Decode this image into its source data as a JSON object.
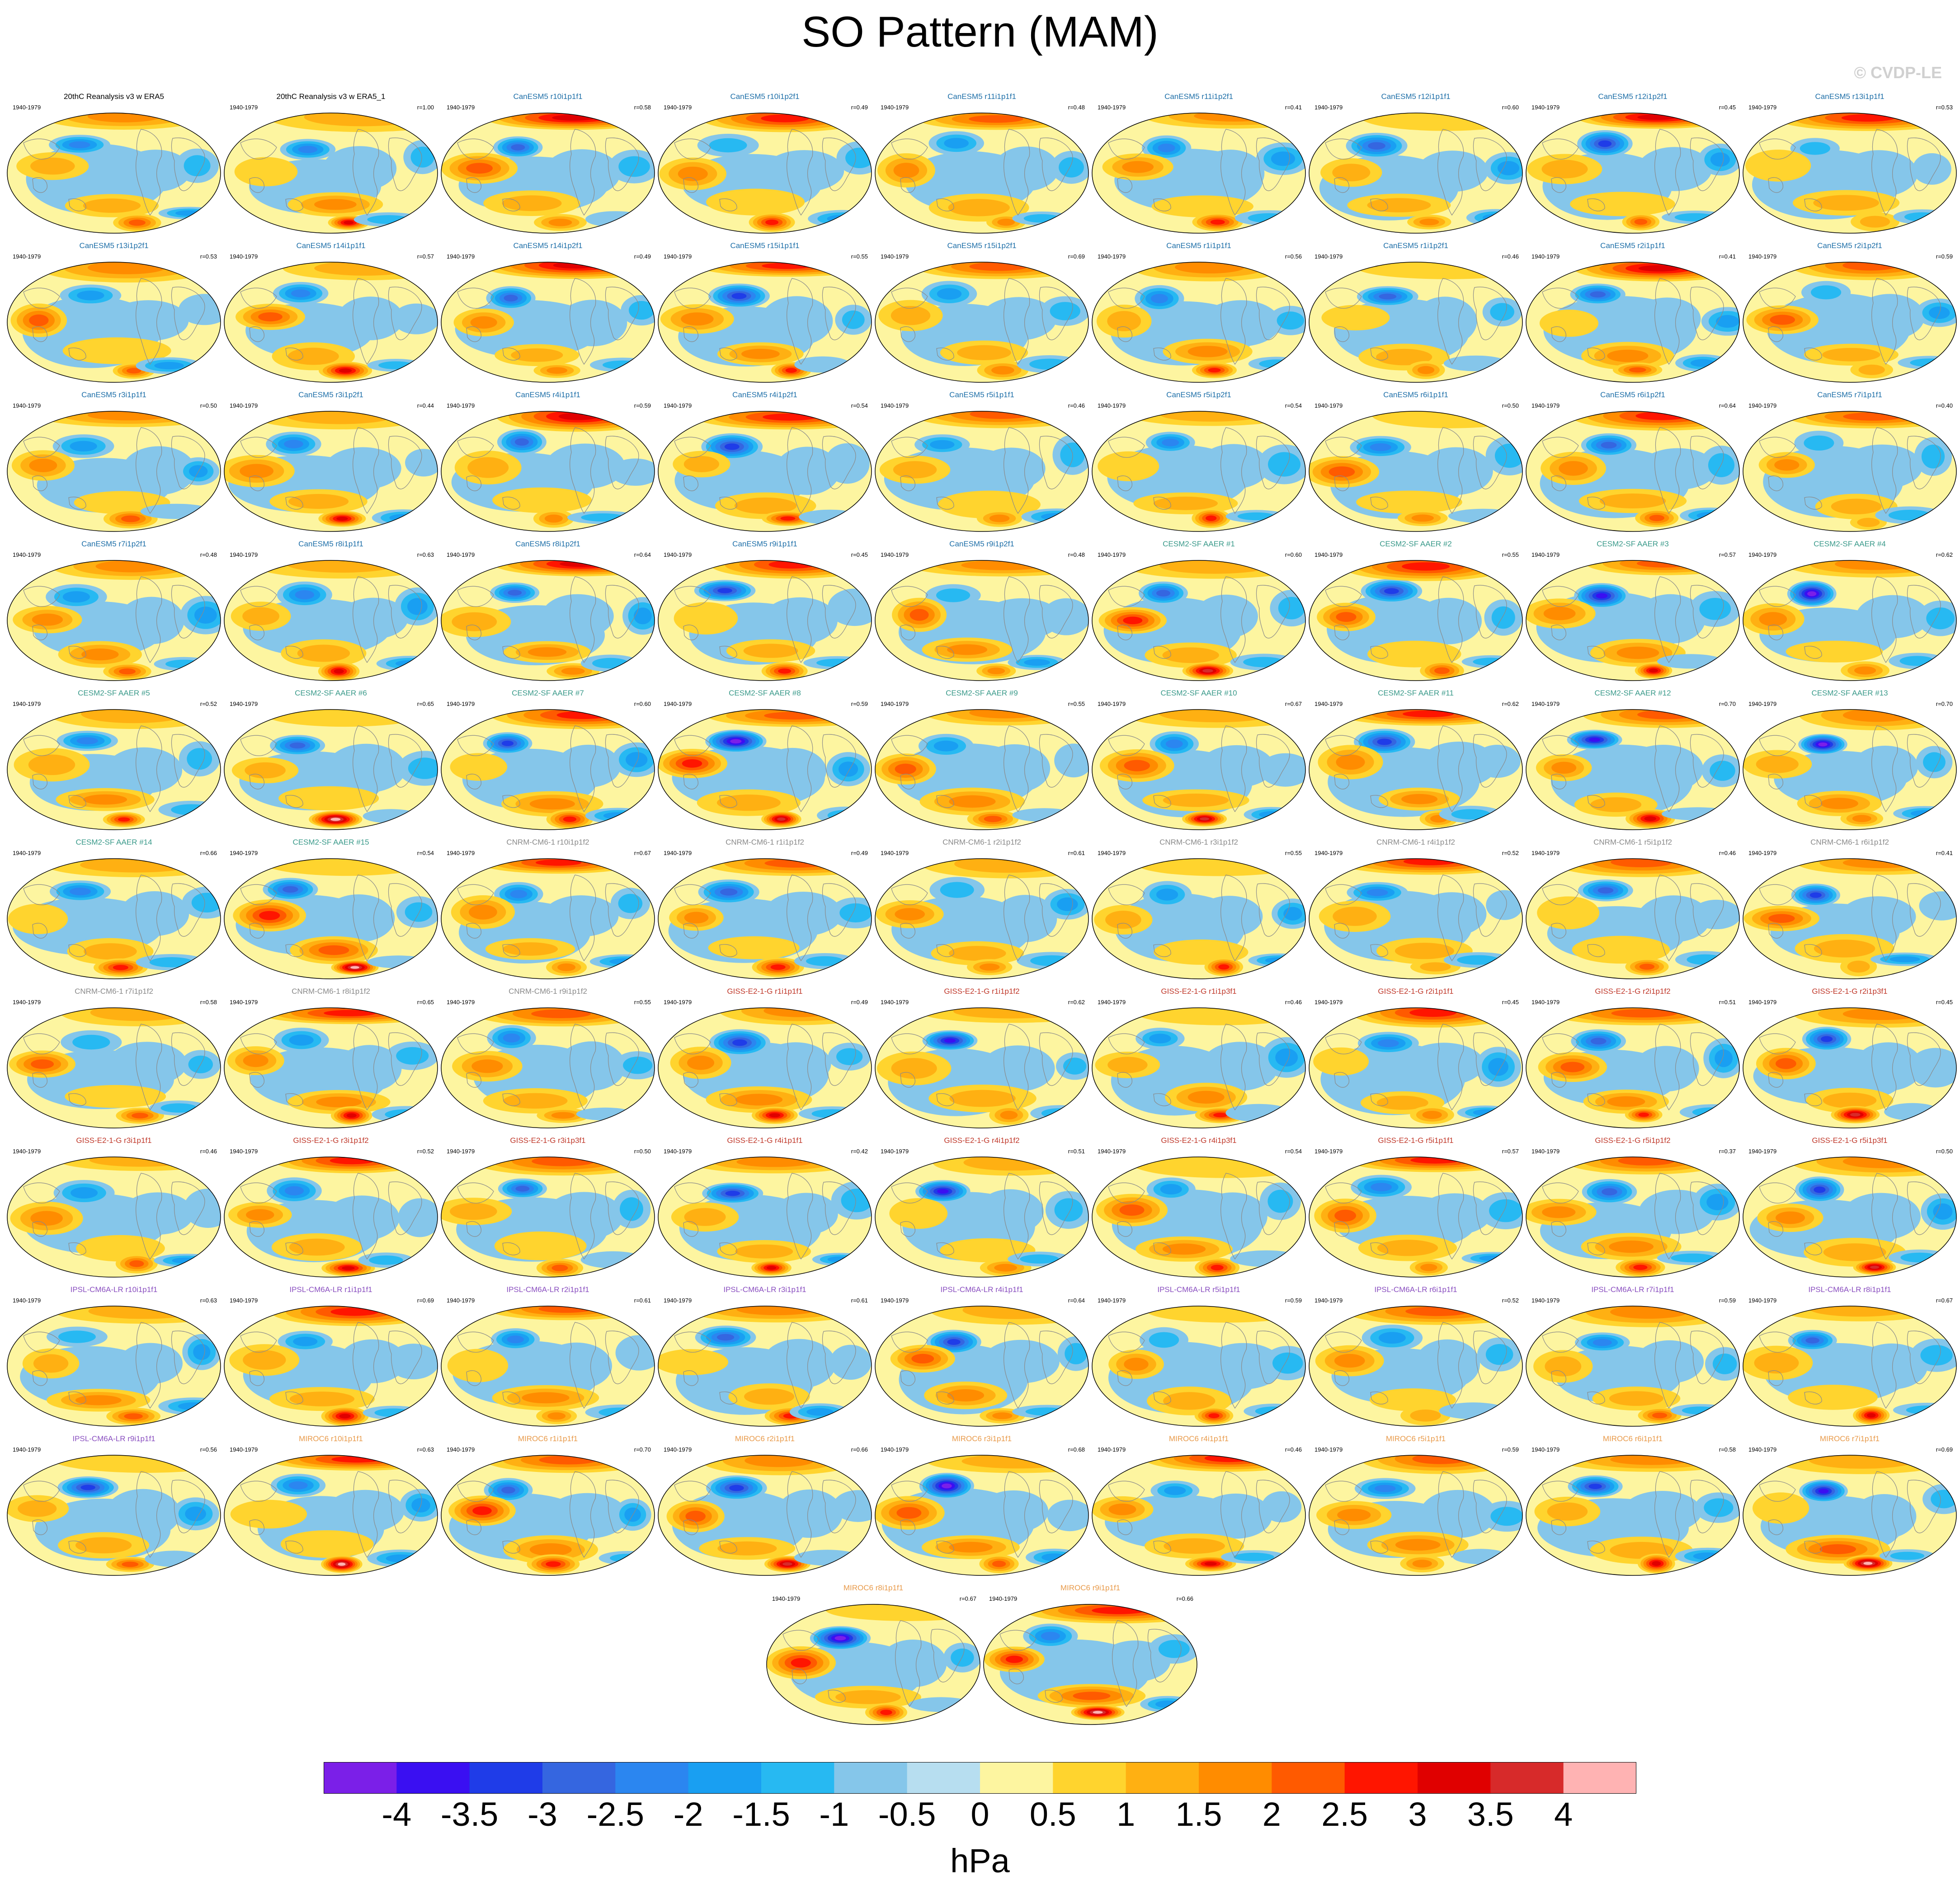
{
  "title": "SO Pattern (MAM)",
  "copyright": "© CVDP-LE",
  "period": "1940-1979",
  "model_colors": {
    "20thC": "#000000",
    "CanESM5": "#1e6fa8",
    "CESM2-SF": "#3a9a8a",
    "CNRM-CM6-1": "#8a8a8a",
    "GISS-E2-1-G": "#c0392b",
    "IPSL-CM6A-LR": "#8a4fc0",
    "MIROC6": "#e89a4a"
  },
  "panels": [
    {
      "title": "20thC Reanalysis v3 w ERA5",
      "r": "",
      "model": "20thC"
    },
    {
      "title": "20thC Reanalysis v3 w ERA5_1",
      "r": "r=1.00",
      "model": "20thC"
    },
    {
      "title": "CanESM5 r10i1p1f1",
      "r": "r=0.58",
      "model": "CanESM5"
    },
    {
      "title": "CanESM5 r10i1p2f1",
      "r": "r=0.49",
      "model": "CanESM5"
    },
    {
      "title": "CanESM5 r11i1p1f1",
      "r": "r=0.48",
      "model": "CanESM5"
    },
    {
      "title": "CanESM5 r11i1p2f1",
      "r": "r=0.41",
      "model": "CanESM5"
    },
    {
      "title": "CanESM5 r12i1p1f1",
      "r": "r=0.60",
      "model": "CanESM5"
    },
    {
      "title": "CanESM5 r12i1p2f1",
      "r": "r=0.45",
      "model": "CanESM5"
    },
    {
      "title": "CanESM5 r13i1p1f1",
      "r": "r=0.53",
      "model": "CanESM5"
    },
    {
      "title": "CanESM5 r13i1p2f1",
      "r": "r=0.53",
      "model": "CanESM5"
    },
    {
      "title": "CanESM5 r14i1p1f1",
      "r": "r=0.57",
      "model": "CanESM5"
    },
    {
      "title": "CanESM5 r14i1p2f1",
      "r": "r=0.49",
      "model": "CanESM5"
    },
    {
      "title": "CanESM5 r15i1p1f1",
      "r": "r=0.55",
      "model": "CanESM5"
    },
    {
      "title": "CanESM5 r15i1p2f1",
      "r": "r=0.69",
      "model": "CanESM5"
    },
    {
      "title": "CanESM5 r1i1p1f1",
      "r": "r=0.56",
      "model": "CanESM5"
    },
    {
      "title": "CanESM5 r1i1p2f1",
      "r": "r=0.46",
      "model": "CanESM5"
    },
    {
      "title": "CanESM5 r2i1p1f1",
      "r": "r=0.41",
      "model": "CanESM5"
    },
    {
      "title": "CanESM5 r2i1p2f1",
      "r": "r=0.59",
      "model": "CanESM5"
    },
    {
      "title": "CanESM5 r3i1p1f1",
      "r": "r=0.50",
      "model": "CanESM5"
    },
    {
      "title": "CanESM5 r3i1p2f1",
      "r": "r=0.44",
      "model": "CanESM5"
    },
    {
      "title": "CanESM5 r4i1p1f1",
      "r": "r=0.59",
      "model": "CanESM5"
    },
    {
      "title": "CanESM5 r4i1p2f1",
      "r": "r=0.54",
      "model": "CanESM5"
    },
    {
      "title": "CanESM5 r5i1p1f1",
      "r": "r=0.46",
      "model": "CanESM5"
    },
    {
      "title": "CanESM5 r5i1p2f1",
      "r": "r=0.54",
      "model": "CanESM5"
    },
    {
      "title": "CanESM5 r6i1p1f1",
      "r": "r=0.50",
      "model": "CanESM5"
    },
    {
      "title": "CanESM5 r6i1p2f1",
      "r": "r=0.64",
      "model": "CanESM5"
    },
    {
      "title": "CanESM5 r7i1p1f1",
      "r": "r=0.40",
      "model": "CanESM5"
    },
    {
      "title": "CanESM5 r7i1p2f1",
      "r": "r=0.48",
      "model": "CanESM5"
    },
    {
      "title": "CanESM5 r8i1p1f1",
      "r": "r=0.63",
      "model": "CanESM5"
    },
    {
      "title": "CanESM5 r8i1p2f1",
      "r": "r=0.64",
      "model": "CanESM5"
    },
    {
      "title": "CanESM5 r9i1p1f1",
      "r": "r=0.45",
      "model": "CanESM5"
    },
    {
      "title": "CanESM5 r9i1p2f1",
      "r": "r=0.48",
      "model": "CanESM5"
    },
    {
      "title": "CESM2-SF AAER #1",
      "r": "r=0.60",
      "model": "CESM2-SF"
    },
    {
      "title": "CESM2-SF AAER #2",
      "r": "r=0.55",
      "model": "CESM2-SF"
    },
    {
      "title": "CESM2-SF AAER #3",
      "r": "r=0.57",
      "model": "CESM2-SF"
    },
    {
      "title": "CESM2-SF AAER #4",
      "r": "r=0.62",
      "model": "CESM2-SF"
    },
    {
      "title": "CESM2-SF AAER #5",
      "r": "r=0.52",
      "model": "CESM2-SF"
    },
    {
      "title": "CESM2-SF AAER #6",
      "r": "r=0.65",
      "model": "CESM2-SF"
    },
    {
      "title": "CESM2-SF AAER #7",
      "r": "r=0.60",
      "model": "CESM2-SF"
    },
    {
      "title": "CESM2-SF AAER #8",
      "r": "r=0.59",
      "model": "CESM2-SF"
    },
    {
      "title": "CESM2-SF AAER #9",
      "r": "r=0.55",
      "model": "CESM2-SF"
    },
    {
      "title": "CESM2-SF AAER #10",
      "r": "r=0.67",
      "model": "CESM2-SF"
    },
    {
      "title": "CESM2-SF AAER #11",
      "r": "r=0.62",
      "model": "CESM2-SF"
    },
    {
      "title": "CESM2-SF AAER #12",
      "r": "r=0.70",
      "model": "CESM2-SF"
    },
    {
      "title": "CESM2-SF AAER #13",
      "r": "r=0.70",
      "model": "CESM2-SF"
    },
    {
      "title": "CESM2-SF AAER #14",
      "r": "r=0.66",
      "model": "CESM2-SF"
    },
    {
      "title": "CESM2-SF AAER #15",
      "r": "r=0.54",
      "model": "CESM2-SF"
    },
    {
      "title": "CNRM-CM6-1 r10i1p1f2",
      "r": "r=0.67",
      "model": "CNRM-CM6-1"
    },
    {
      "title": "CNRM-CM6-1 r1i1p1f2",
      "r": "r=0.49",
      "model": "CNRM-CM6-1"
    },
    {
      "title": "CNRM-CM6-1 r2i1p1f2",
      "r": "r=0.61",
      "model": "CNRM-CM6-1"
    },
    {
      "title": "CNRM-CM6-1 r3i1p1f2",
      "r": "r=0.55",
      "model": "CNRM-CM6-1"
    },
    {
      "title": "CNRM-CM6-1 r4i1p1f2",
      "r": "r=0.52",
      "model": "CNRM-CM6-1"
    },
    {
      "title": "CNRM-CM6-1 r5i1p1f2",
      "r": "r=0.46",
      "model": "CNRM-CM6-1"
    },
    {
      "title": "CNRM-CM6-1 r6i1p1f2",
      "r": "r=0.41",
      "model": "CNRM-CM6-1"
    },
    {
      "title": "CNRM-CM6-1 r7i1p1f2",
      "r": "r=0.58",
      "model": "CNRM-CM6-1"
    },
    {
      "title": "CNRM-CM6-1 r8i1p1f2",
      "r": "r=0.65",
      "model": "CNRM-CM6-1"
    },
    {
      "title": "CNRM-CM6-1 r9i1p1f2",
      "r": "r=0.55",
      "model": "CNRM-CM6-1"
    },
    {
      "title": "GISS-E2-1-G r1i1p1f1",
      "r": "r=0.49",
      "model": "GISS-E2-1-G"
    },
    {
      "title": "GISS-E2-1-G r1i1p1f2",
      "r": "r=0.62",
      "model": "GISS-E2-1-G"
    },
    {
      "title": "GISS-E2-1-G r1i1p3f1",
      "r": "r=0.46",
      "model": "GISS-E2-1-G"
    },
    {
      "title": "GISS-E2-1-G r2i1p1f1",
      "r": "r=0.45",
      "model": "GISS-E2-1-G"
    },
    {
      "title": "GISS-E2-1-G r2i1p1f2",
      "r": "r=0.51",
      "model": "GISS-E2-1-G"
    },
    {
      "title": "GISS-E2-1-G r2i1p3f1",
      "r": "r=0.45",
      "model": "GISS-E2-1-G"
    },
    {
      "title": "GISS-E2-1-G r3i1p1f1",
      "r": "r=0.46",
      "model": "GISS-E2-1-G"
    },
    {
      "title": "GISS-E2-1-G r3i1p1f2",
      "r": "r=0.52",
      "model": "GISS-E2-1-G"
    },
    {
      "title": "GISS-E2-1-G r3i1p3f1",
      "r": "r=0.50",
      "model": "GISS-E2-1-G"
    },
    {
      "title": "GISS-E2-1-G r4i1p1f1",
      "r": "r=0.42",
      "model": "GISS-E2-1-G"
    },
    {
      "title": "GISS-E2-1-G r4i1p1f2",
      "r": "r=0.51",
      "model": "GISS-E2-1-G"
    },
    {
      "title": "GISS-E2-1-G r4i1p3f1",
      "r": "r=0.54",
      "model": "GISS-E2-1-G"
    },
    {
      "title": "GISS-E2-1-G r5i1p1f1",
      "r": "r=0.57",
      "model": "GISS-E2-1-G"
    },
    {
      "title": "GISS-E2-1-G r5i1p1f2",
      "r": "r=0.37",
      "model": "GISS-E2-1-G"
    },
    {
      "title": "GISS-E2-1-G r5i1p3f1",
      "r": "r=0.50",
      "model": "GISS-E2-1-G"
    },
    {
      "title": "IPSL-CM6A-LR r10i1p1f1",
      "r": "r=0.63",
      "model": "IPSL-CM6A-LR"
    },
    {
      "title": "IPSL-CM6A-LR r1i1p1f1",
      "r": "r=0.69",
      "model": "IPSL-CM6A-LR"
    },
    {
      "title": "IPSL-CM6A-LR r2i1p1f1",
      "r": "r=0.61",
      "model": "IPSL-CM6A-LR"
    },
    {
      "title": "IPSL-CM6A-LR r3i1p1f1",
      "r": "r=0.61",
      "model": "IPSL-CM6A-LR"
    },
    {
      "title": "IPSL-CM6A-LR r4i1p1f1",
      "r": "r=0.64",
      "model": "IPSL-CM6A-LR"
    },
    {
      "title": "IPSL-CM6A-LR r5i1p1f1",
      "r": "r=0.59",
      "model": "IPSL-CM6A-LR"
    },
    {
      "title": "IPSL-CM6A-LR r6i1p1f1",
      "r": "r=0.52",
      "model": "IPSL-CM6A-LR"
    },
    {
      "title": "IPSL-CM6A-LR r7i1p1f1",
      "r": "r=0.59",
      "model": "IPSL-CM6A-LR"
    },
    {
      "title": "IPSL-CM6A-LR r8i1p1f1",
      "r": "r=0.67",
      "model": "IPSL-CM6A-LR"
    },
    {
      "title": "IPSL-CM6A-LR r9i1p1f1",
      "r": "r=0.56",
      "model": "IPSL-CM6A-LR"
    },
    {
      "title": "MIROC6 r10i1p1f1",
      "r": "r=0.63",
      "model": "MIROC6"
    },
    {
      "title": "MIROC6 r1i1p1f1",
      "r": "r=0.70",
      "model": "MIROC6"
    },
    {
      "title": "MIROC6 r2i1p1f1",
      "r": "r=0.66",
      "model": "MIROC6"
    },
    {
      "title": "MIROC6 r3i1p1f1",
      "r": "r=0.68",
      "model": "MIROC6"
    },
    {
      "title": "MIROC6 r4i1p1f1",
      "r": "r=0.46",
      "model": "MIROC6"
    },
    {
      "title": "MIROC6 r5i1p1f1",
      "r": "r=0.59",
      "model": "MIROC6"
    },
    {
      "title": "MIROC6 r6i1p1f1",
      "r": "r=0.58",
      "model": "MIROC6"
    },
    {
      "title": "MIROC6 r7i1p1f1",
      "r": "r=0.69",
      "model": "MIROC6"
    },
    {
      "title": "MIROC6 r8i1p1f1",
      "r": "r=0.67",
      "model": "MIROC6"
    },
    {
      "title": "MIROC6 r9i1p1f1",
      "r": "r=0.66",
      "model": "MIROC6"
    }
  ],
  "colorbar": {
    "colors": [
      "#7b1fe8",
      "#3a0ff2",
      "#1f3ce8",
      "#3566e0",
      "#2b86f0",
      "#199ff2",
      "#27b9f2",
      "#85c6ea",
      "#b7def0",
      "#fdf5a0",
      "#ffd42e",
      "#ffb012",
      "#ff8c00",
      "#ff5a00",
      "#ff1500",
      "#e00000",
      "#d72a2a",
      "#ffb3b3"
    ],
    "labels": [
      "-4",
      "-3.5",
      "-3",
      "-2.5",
      "-2",
      "-1.5",
      "-1",
      "-0.5",
      "0",
      "0.5",
      "1",
      "1.5",
      "2",
      "2.5",
      "3",
      "3.5",
      "4"
    ],
    "units": "hPa"
  }
}
